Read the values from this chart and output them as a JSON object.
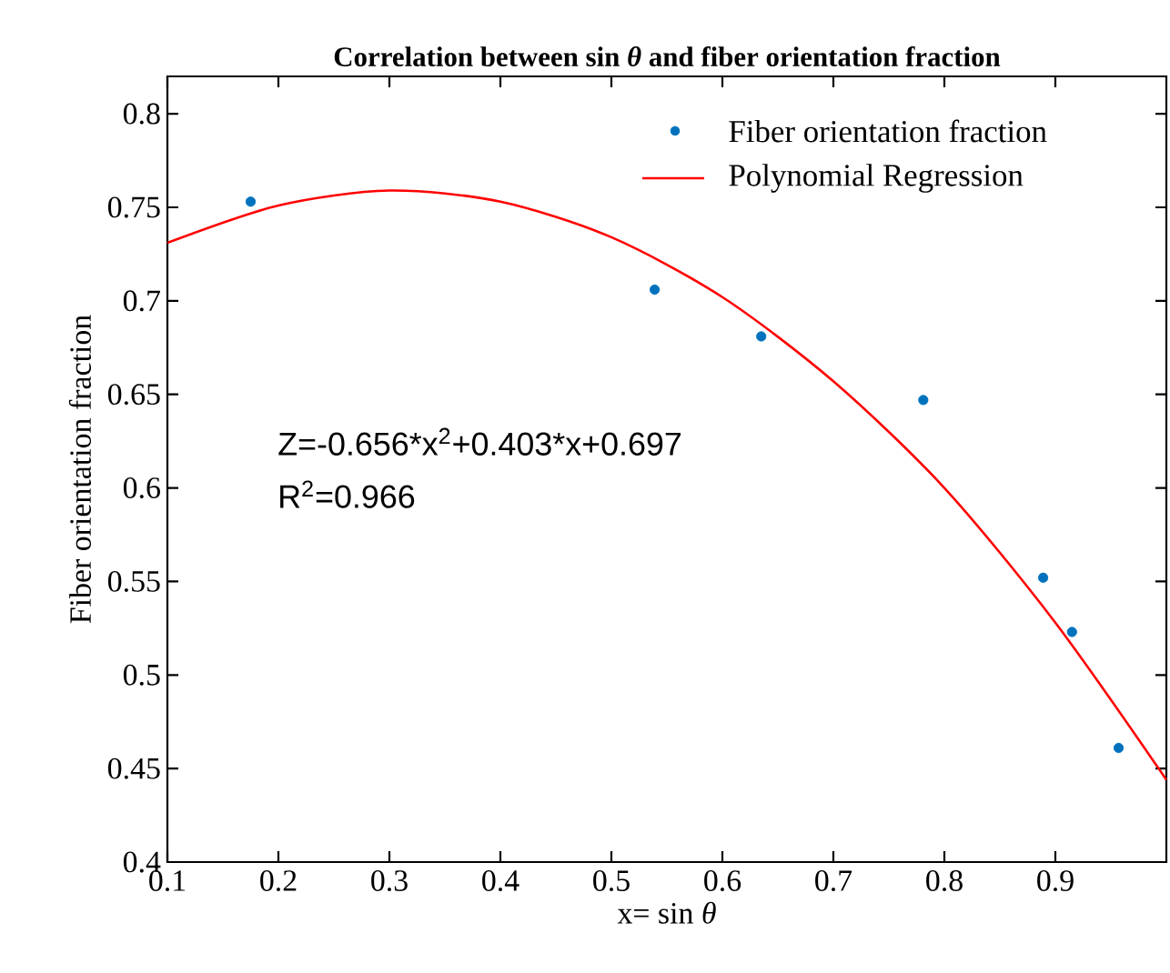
{
  "chart_data": {
    "type": "scatter",
    "title": "Correlation between sin *θ* and fiber orientation fraction",
    "xlabel": "x= sin *θ*",
    "ylabel": "Fiber orientation fraction",
    "series": [
      {
        "name": "Fiber orientation fraction",
        "marker": "circle",
        "color": "#0072bd",
        "x": [
          0.175,
          0.539,
          0.635,
          0.781,
          0.889,
          0.915,
          0.957
        ],
        "values": [
          0.753,
          0.706,
          0.681,
          0.647,
          0.552,
          0.523,
          0.461
        ]
      },
      {
        "name": "Polynomial Regression",
        "type": "line",
        "color": "#ff0000",
        "x": [
          0.1,
          0.2,
          0.3,
          0.4,
          0.5,
          0.6,
          0.7,
          0.8,
          0.9,
          1.0
        ],
        "values": [
          0.731,
          0.751,
          0.759,
          0.753,
          0.734,
          0.702,
          0.657,
          0.6,
          0.528,
          0.444
        ]
      }
    ],
    "xlim": [
      0.1,
      1.0
    ],
    "ylim": [
      0.4,
      0.82
    ],
    "xticks": [
      0.1,
      0.2,
      0.3,
      0.4,
      0.5,
      0.6,
      0.7,
      0.8,
      0.9
    ],
    "yticks": [
      0.4,
      0.45,
      0.5,
      0.55,
      0.6,
      0.65,
      0.7,
      0.75,
      0.8
    ],
    "annotations": [
      "Z=-0.656*x$^{2}$+0.403*x+0.697",
      "R$^{2}$=0.966"
    ],
    "legend": "top right"
  }
}
